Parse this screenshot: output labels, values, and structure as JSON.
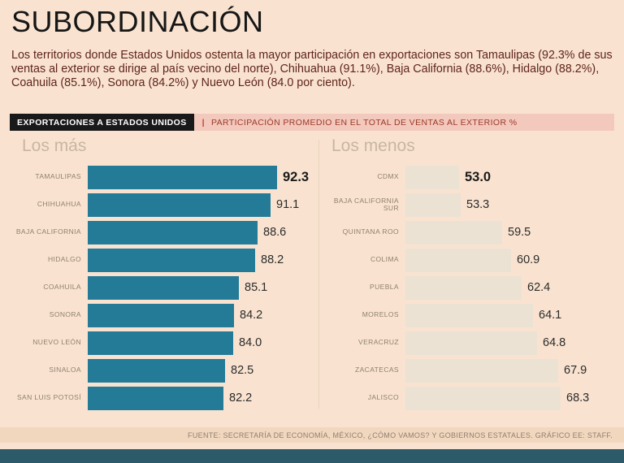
{
  "page": {
    "title": "SUBORDINACIÓN",
    "intro": "Los territorios donde Estados Unidos ostenta la mayor participación en exportaciones son Tamaulipas (92.3% de sus ventas al exterior se dirige al país vecino del norte), Chihuahua (91.1%), Baja California (88.6%), Hidalgo (88.2%), Coahuila (85.1%), Sonora (84.2%) y Nuevo León (84.0 por ciento).",
    "source": "FUENTE: SECRETARÍA DE ECONOMÍA, MÉXICO, ¿CÓMO VAMOS? Y GOBIERNOS ESTATALES. GRÁFICO EE: STAFF."
  },
  "kicker": {
    "primary": "EXPORTACIONES A ESTADOS UNIDOS",
    "separator": "|",
    "secondary": "PARTICIPACIÓN PROMEDIO EN EL TOTAL DE VENTAS AL EXTERIOR %"
  },
  "colors": {
    "background": "#f9e3d0",
    "teal_bar": "#237b97",
    "beige_bar": "#ebe2d4",
    "kicker_black": "#191919",
    "kicker_pink": "#f3c9bd",
    "accent_red": "#9c3a28",
    "bottom_bar": "#2c5a68"
  },
  "chart_data": [
    {
      "type": "bar",
      "orientation": "horizontal",
      "title": "Los más",
      "categories": [
        "TAMAULIPAS",
        "CHIHUAHUA",
        "BAJA CALIFORNIA",
        "HIDALGO",
        "COAHUILA",
        "SONORA",
        "NUEVO LEÓN",
        "SINALOA",
        "SAN LUIS POTOSÍ"
      ],
      "values": [
        92.3,
        91.1,
        88.6,
        88.2,
        85.1,
        84.2,
        84.0,
        82.5,
        82.2
      ],
      "bar_color": "#237b97",
      "xlim": [
        57,
        93
      ],
      "value_labels": true,
      "grid": false,
      "legend": false
    },
    {
      "type": "bar",
      "orientation": "horizontal",
      "title": "Los menos",
      "categories": [
        "CDMX",
        "BAJA CALIFORNIA SUR",
        "QUINTANA ROO",
        "COLIMA",
        "PUEBLA",
        "MORELOS",
        "VERACRUZ",
        "ZACATECAS",
        "JALISCO"
      ],
      "values": [
        53.0,
        53.3,
        59.5,
        60.9,
        62.4,
        64.1,
        64.8,
        67.9,
        68.3
      ],
      "bar_color": "#ebe2d4",
      "xlim": [
        45,
        70
      ],
      "value_labels": true,
      "grid": false,
      "legend": false
    }
  ]
}
